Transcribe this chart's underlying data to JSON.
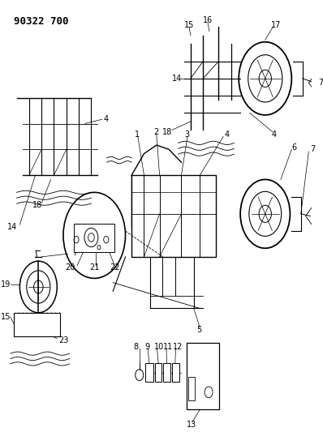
{
  "title": "90322 700",
  "bg_color": "#ffffff",
  "line_color": "#000000",
  "title_fontsize": 9,
  "label_fontsize": 7,
  "figsize": [
    3.98,
    5.33
  ],
  "dpi": 100
}
